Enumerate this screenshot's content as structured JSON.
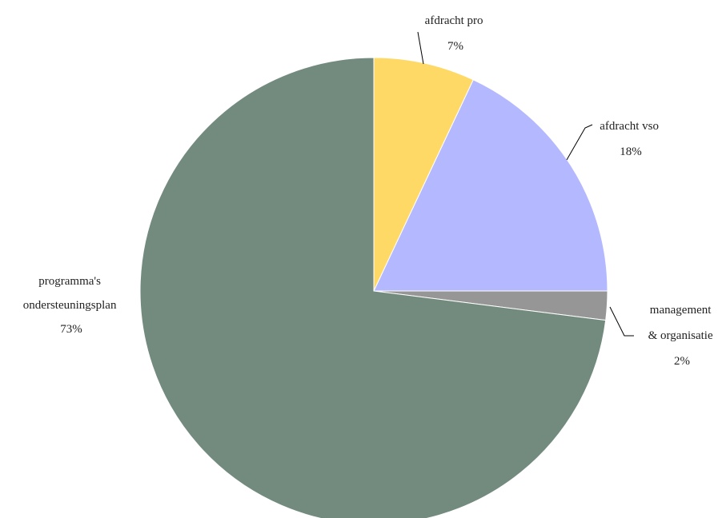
{
  "chart_data": {
    "type": "pie",
    "title": "",
    "legend": "none",
    "slices": [
      {
        "id": "afdracht-pro",
        "lines": [
          "afdracht pro"
        ],
        "pct_label": "7%",
        "value": 7,
        "color": "#FFD966"
      },
      {
        "id": "afdracht-vso",
        "lines": [
          "afdracht vso"
        ],
        "pct_label": "18%",
        "value": 18,
        "color": "#B3B8FF"
      },
      {
        "id": "management-organisatie",
        "lines": [
          "management",
          "& organisatie"
        ],
        "pct_label": "2%",
        "value": 2,
        "color": "#969696"
      },
      {
        "id": "programmas-ondersteuningsplan",
        "lines": [
          "programma's",
          "ondersteuningsplan"
        ],
        "pct_label": "73%",
        "value": 73,
        "color": "#728B7E"
      }
    ]
  }
}
